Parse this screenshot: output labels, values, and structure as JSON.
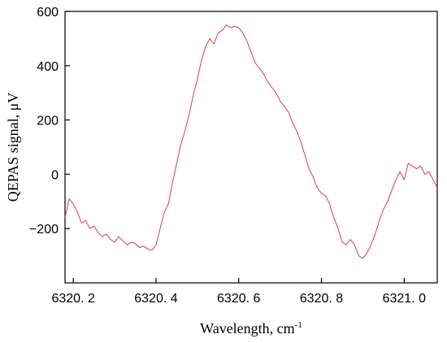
{
  "chart_data": {
    "type": "line",
    "xlabel": "Wavelength, cm",
    "xlabel_superscript": "-1",
    "ylabel": "QEPAS signal, μV",
    "xlim": [
      6320.18,
      6321.08
    ],
    "ylim": [
      -400,
      600
    ],
    "x_ticks": [
      6320.2,
      6320.4,
      6320.6,
      6320.8,
      6321.0
    ],
    "x_tick_labels": [
      "6320. 2",
      "6320. 4",
      "6320. 6",
      "6320. 8",
      "6321. 0"
    ],
    "y_ticks": [
      -200,
      0,
      200,
      400,
      600
    ],
    "y_tick_labels": [
      "−200",
      "0",
      "200",
      "400",
      "600"
    ],
    "grid": false,
    "line_color": "#e03c3c",
    "series": [
      {
        "x": [
          6320.18,
          6320.19,
          6320.2,
          6320.21,
          6320.22,
          6320.23,
          6320.24,
          6320.25,
          6320.26,
          6320.27,
          6320.28,
          6320.29,
          6320.3,
          6320.31,
          6320.32,
          6320.33,
          6320.34,
          6320.35,
          6320.36,
          6320.37,
          6320.38,
          6320.39,
          6320.4,
          6320.41,
          6320.42,
          6320.43,
          6320.44,
          6320.45,
          6320.46,
          6320.47,
          6320.48,
          6320.49,
          6320.5,
          6320.51,
          6320.52,
          6320.53,
          6320.54,
          6320.55,
          6320.56,
          6320.57,
          6320.58,
          6320.59,
          6320.6,
          6320.61,
          6320.62,
          6320.63,
          6320.64,
          6320.65,
          6320.66,
          6320.67,
          6320.68,
          6320.69,
          6320.7,
          6320.71,
          6320.72,
          6320.73,
          6320.74,
          6320.75,
          6320.76,
          6320.77,
          6320.78,
          6320.79,
          6320.8,
          6320.81,
          6320.82,
          6320.83,
          6320.84,
          6320.85,
          6320.86,
          6320.87,
          6320.88,
          6320.89,
          6320.9,
          6320.91,
          6320.92,
          6320.93,
          6320.94,
          6320.95,
          6320.96,
          6320.97,
          6320.98,
          6320.99,
          6321.0,
          6321.01,
          6321.02,
          6321.03,
          6321.04,
          6321.05,
          6321.06,
          6321.07,
          6321.08
        ],
        "y": [
          -160,
          -90,
          -110,
          -140,
          -180,
          -170,
          -200,
          -190,
          -215,
          -230,
          -220,
          -240,
          -250,
          -230,
          -245,
          -260,
          -250,
          -255,
          -270,
          -265,
          -275,
          -280,
          -260,
          -200,
          -140,
          -110,
          -30,
          40,
          110,
          160,
          220,
          290,
          350,
          420,
          470,
          500,
          480,
          520,
          530,
          550,
          540,
          545,
          540,
          520,
          490,
          450,
          410,
          390,
          370,
          340,
          320,
          300,
          270,
          250,
          230,
          190,
          160,
          120,
          70,
          20,
          -10,
          -50,
          -70,
          -80,
          -110,
          -160,
          -200,
          -250,
          -260,
          -240,
          -260,
          -300,
          -310,
          -290,
          -260,
          -220,
          -170,
          -130,
          -100,
          -60,
          -20,
          10,
          -20,
          40,
          30,
          20,
          30,
          0,
          10,
          -20,
          -50
        ]
      }
    ]
  }
}
